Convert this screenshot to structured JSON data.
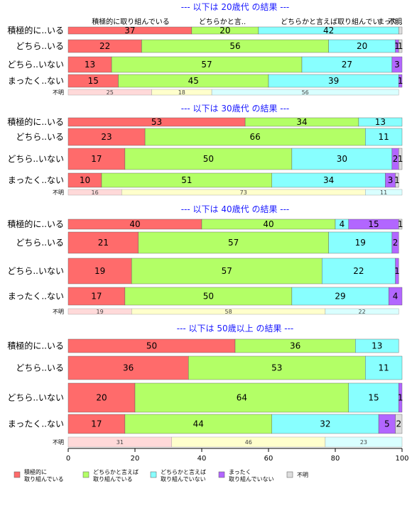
{
  "chart_data": {
    "type": "bar",
    "orientation": "horizontal-stacked",
    "xlim": [
      0,
      100
    ],
    "xticks": [
      "0",
      "20",
      "40",
      "60",
      "80",
      "100"
    ],
    "colors": [
      "#ff6b6b",
      "#b3ff66",
      "#88ffff",
      "#b266ff",
      "#dddddd"
    ],
    "missing_colors": [
      "#ffd9d9",
      "#ffffcc",
      "#d9ffff"
    ],
    "top_category_labels": [
      "積極的に取り組んでいる",
      "どちらかと言..",
      "どちらかと言えば取り組んでい..",
      "まった..",
      "不明"
    ],
    "legend": [
      {
        "name": "積極的に\n取り組んでいる"
      },
      {
        "name": "どちらかと言えば\n取り組んでいる"
      },
      {
        "name": "どちらかと言えば\n取り組んでいない"
      },
      {
        "name": "まったく\n取り組んでいない"
      },
      {
        "name": "不明"
      }
    ],
    "panels": [
      {
        "title": "--- 以下は 20歳代 の結果 ---",
        "rows": [
          {
            "label": "積極的に..いる",
            "values": [
              37,
              20,
              42,
              0,
              1
            ],
            "labels": [
              "37",
              "20",
              "42",
              "",
              ""
            ]
          },
          {
            "label": "どちら..いる",
            "values": [
              22,
              56,
              20,
              1,
              1
            ],
            "labels": [
              "22",
              "56",
              "20",
              "1",
              "1"
            ]
          },
          {
            "label": "どちら..いない",
            "values": [
              13,
              57,
              27,
              3,
              0
            ],
            "labels": [
              "13",
              "57",
              "27",
              "3",
              ""
            ]
          },
          {
            "label": "まったく..ない",
            "values": [
              15,
              45,
              39,
              1,
              0
            ],
            "labels": [
              "15",
              "45",
              "39",
              "1",
              ""
            ]
          }
        ],
        "missing": {
          "label": "不明",
          "values": [
            25,
            18,
            56
          ],
          "labels": [
            "25",
            "18",
            "56"
          ]
        }
      },
      {
        "title": "--- 以下は 30歳代 の結果 ---",
        "rows": [
          {
            "label": "積極的に..いる",
            "values": [
              53,
              34,
              13,
              0,
              0
            ],
            "labels": [
              "53",
              "34",
              "13",
              "",
              ""
            ]
          },
          {
            "label": "どちら..いる",
            "values": [
              23,
              66,
              11,
              0,
              0
            ],
            "labels": [
              "23",
              "66",
              "11",
              "",
              ""
            ]
          },
          {
            "label": "どちら..いない",
            "values": [
              17,
              50,
              30,
              2,
              1
            ],
            "labels": [
              "17",
              "50",
              "30",
              "2",
              "1"
            ]
          },
          {
            "label": "まったく..ない",
            "values": [
              10,
              51,
              34,
              3,
              1
            ],
            "labels": [
              "10",
              "51",
              "34",
              "3",
              "1"
            ]
          }
        ],
        "missing": {
          "label": "不明",
          "values": [
            16,
            73,
            11
          ],
          "labels": [
            "16",
            "73",
            "11"
          ]
        }
      },
      {
        "title": "--- 以下は 40歳代 の結果 ---",
        "rows": [
          {
            "label": "積極的に..いる",
            "values": [
              40,
              40,
              4,
              15,
              1
            ],
            "labels": [
              "40",
              "40",
              "4",
              "15",
              "1"
            ]
          },
          {
            "label": "どちら..いる",
            "values": [
              21,
              57,
              19,
              2,
              0
            ],
            "labels": [
              "21",
              "57",
              "19",
              "2",
              ""
            ]
          },
          {
            "label": "どちら..いない",
            "values": [
              19,
              57,
              22,
              1,
              0
            ],
            "labels": [
              "19",
              "57",
              "22",
              "1",
              ""
            ]
          },
          {
            "label": "まったく..ない",
            "values": [
              17,
              50,
              29,
              4,
              0
            ],
            "labels": [
              "17",
              "50",
              "29",
              "4",
              ""
            ]
          }
        ],
        "missing": {
          "label": "不明",
          "values": [
            19,
            58,
            22
          ],
          "labels": [
            "19",
            "58",
            "22"
          ]
        }
      },
      {
        "title": "--- 以下は 50歳以上 の結果 ---",
        "rows": [
          {
            "label": "積極的に..いる",
            "values": [
              50,
              36,
              13,
              0,
              0
            ],
            "labels": [
              "50",
              "36",
              "13",
              "",
              ""
            ]
          },
          {
            "label": "どちら..いる",
            "values": [
              36,
              53,
              11,
              0,
              0
            ],
            "labels": [
              "36",
              "53",
              "11",
              "",
              ""
            ]
          },
          {
            "label": "どちら..いない",
            "values": [
              20,
              64,
              15,
              1,
              0
            ],
            "labels": [
              "20",
              "64",
              "15",
              "1",
              ""
            ]
          },
          {
            "label": "まったく..ない",
            "values": [
              17,
              44,
              32,
              5,
              2
            ],
            "labels": [
              "17",
              "44",
              "32",
              "5",
              "2"
            ]
          }
        ],
        "missing": {
          "label": "不明",
          "values": [
            31,
            46,
            23
          ],
          "labels": [
            "31",
            "46",
            "23"
          ]
        }
      }
    ]
  }
}
